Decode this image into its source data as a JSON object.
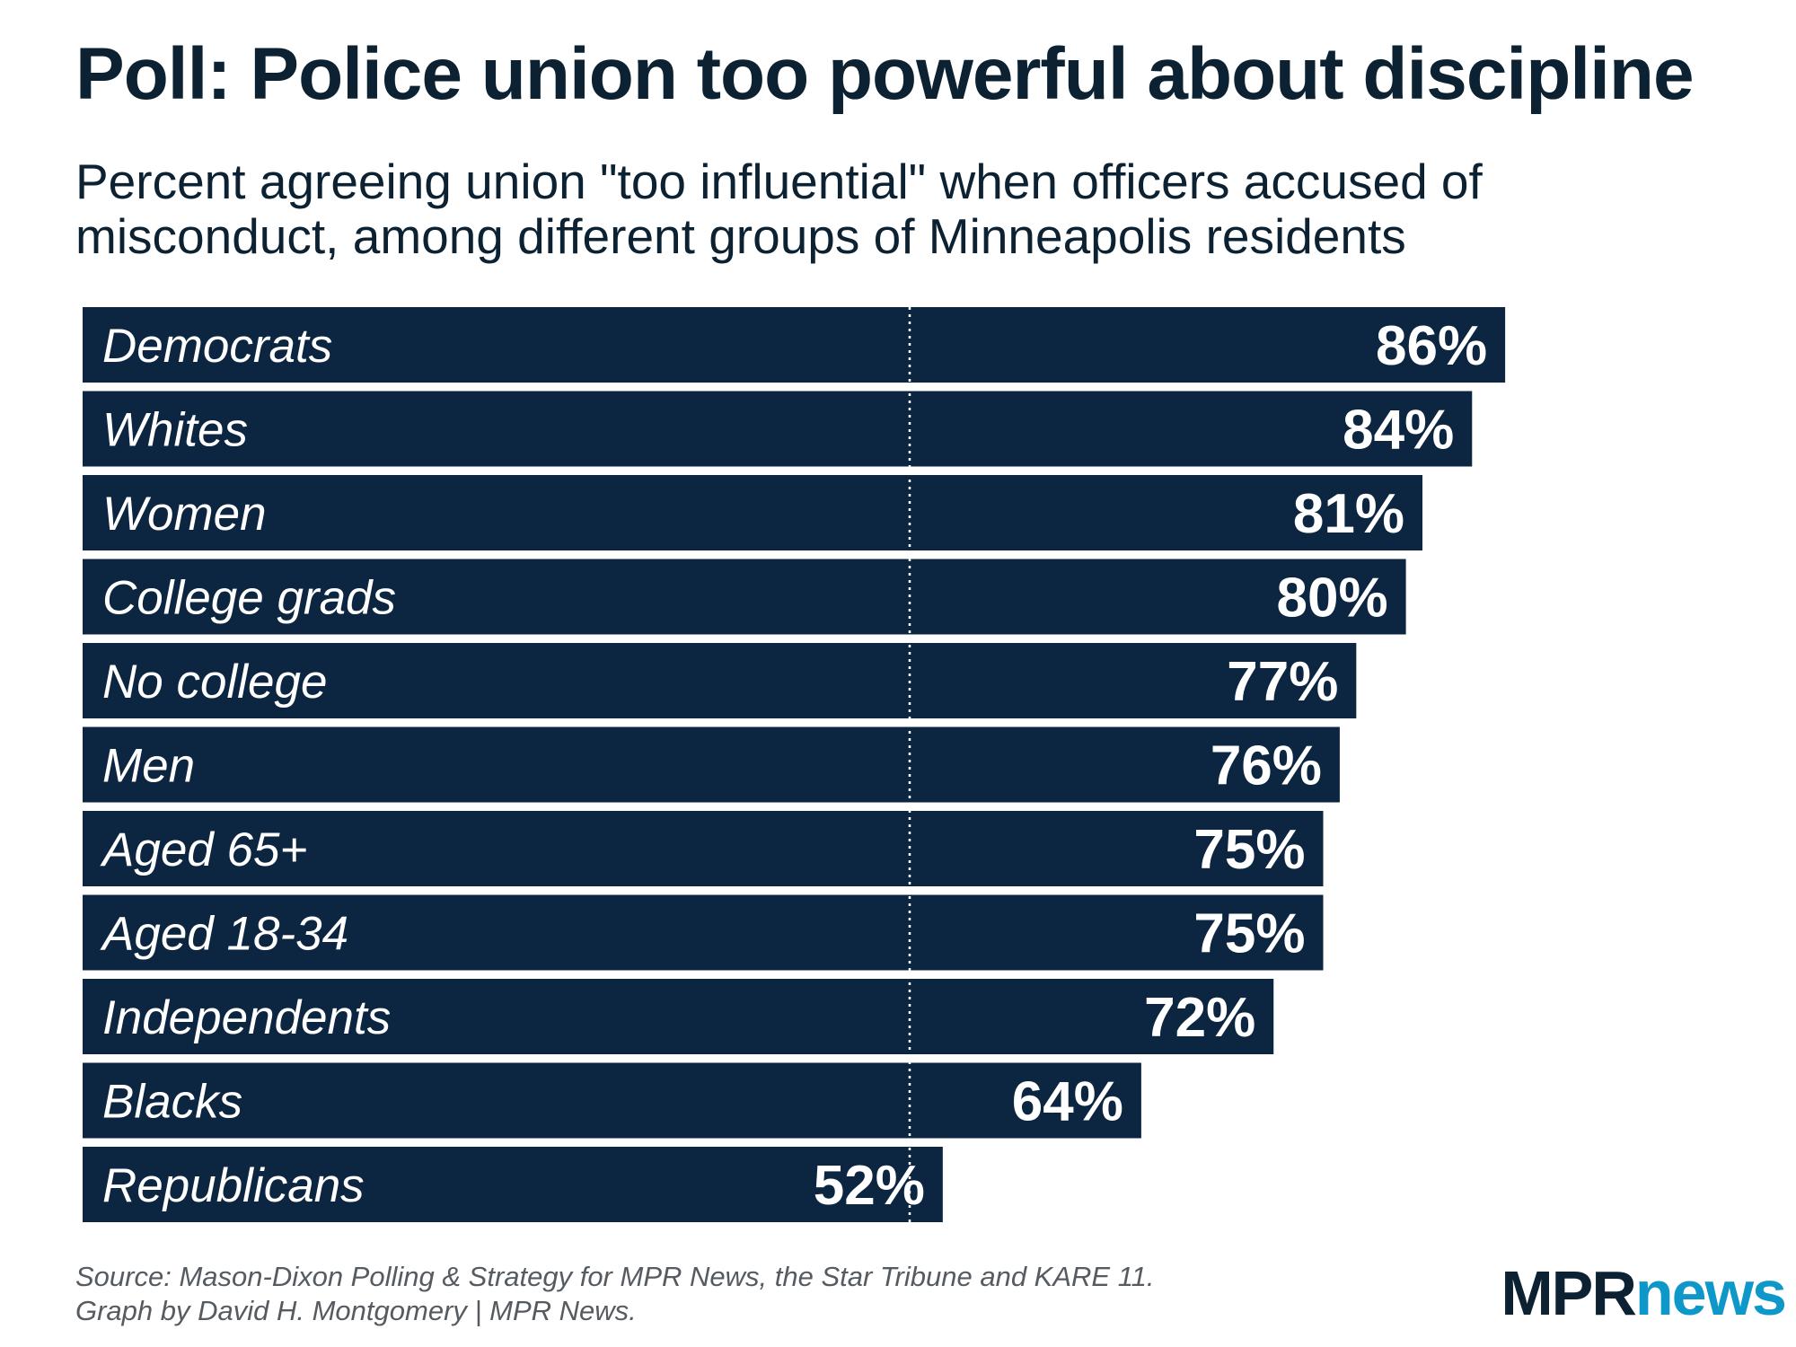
{
  "title": "Poll: Police union too powerful about discipline",
  "subtitle": "Percent agreeing union \"too influential\" when officers accused of misconduct, among different groups of Minneapolis residents",
  "source_lines": [
    "Source: Mason-Dixon Polling & Strategy for MPR News, the Star Tribune and KARE 11.",
    "Graph by David H. Montgomery | MPR News."
  ],
  "logo": {
    "part1": "MPR",
    "part2": "news"
  },
  "colors": {
    "bar": "#0c2540",
    "reference_line": "#ffffff",
    "logo_accent": "#0e97c9"
  },
  "chart_data": {
    "type": "bar",
    "orientation": "horizontal",
    "categories": [
      "Democrats",
      "Whites",
      "Women",
      "College grads",
      "No college",
      "Men",
      "Aged 65+",
      "Aged 18-34",
      "Independents",
      "Blacks",
      "Republicans"
    ],
    "values": [
      86,
      84,
      81,
      80,
      77,
      76,
      75,
      75,
      72,
      64,
      52
    ],
    "value_labels": [
      "86%",
      "84%",
      "81%",
      "80%",
      "77%",
      "76%",
      "75%",
      "75%",
      "72%",
      "64%",
      "52%"
    ],
    "unit": "%",
    "xlim": [
      0,
      100
    ],
    "reference_line": 50,
    "grid": false
  }
}
